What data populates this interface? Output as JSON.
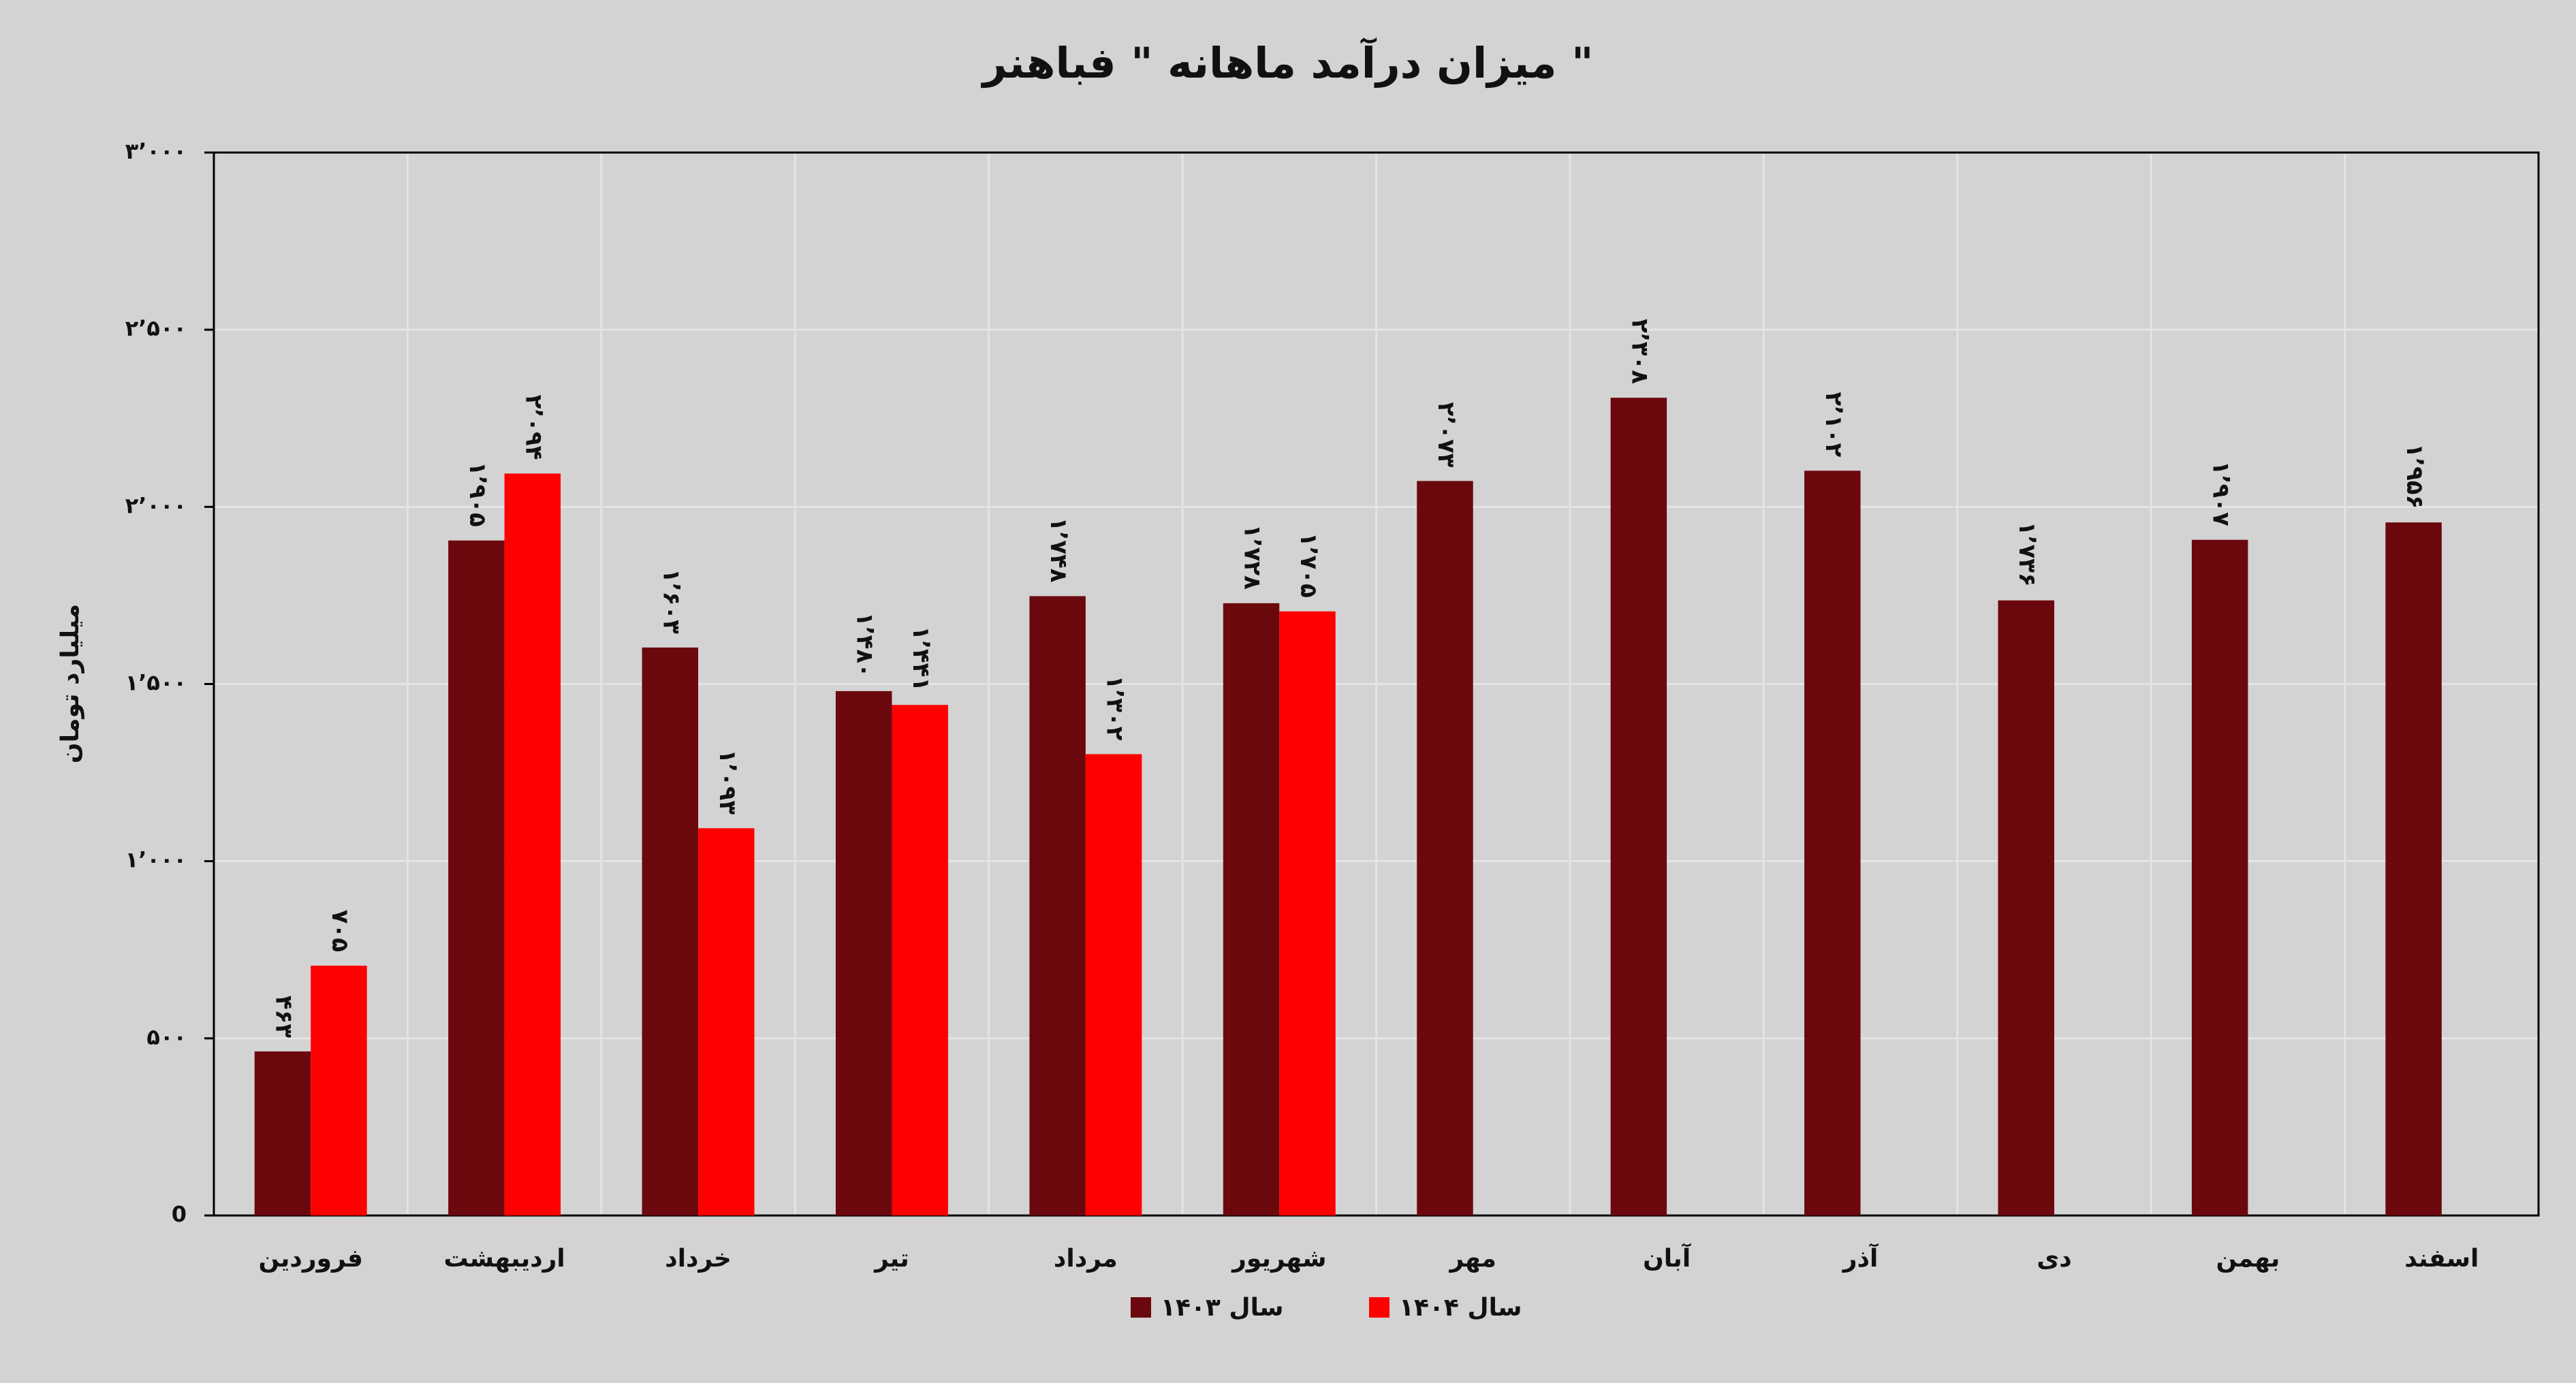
{
  "chart_data": {
    "type": "bar",
    "title": "میزان درآمد ماهانه \" فباهنر \"",
    "y_label": "میلیارد تومان",
    "categories": [
      "فروردین",
      "اردیبهشت",
      "خرداد",
      "تیر",
      "مرداد",
      "شهریور",
      "مهر",
      "آبان",
      "آذر",
      "دی",
      "بهمن",
      "اسفند"
    ],
    "series": [
      {
        "name": "سال ۱۴۰۳",
        "color": "#6b080e",
        "values": [
          463,
          1905,
          1603,
          1480,
          1748,
          1728,
          2073,
          2308,
          2102,
          1736,
          1907,
          1956
        ],
        "value_labels": [
          "۴۶۳",
          "۱٬۹۰۵",
          "۱٬۶۰۳",
          "۱٬۴۸۰",
          "۱٬۷۴۸",
          "۱٬۷۲۸",
          "۲٬۰۷۳",
          "۲٬۳۰۸",
          "۲٬۱۰۲",
          "۱٬۷۳۶",
          "۱٬۹۰۷",
          "۱٬۹۵۶"
        ]
      },
      {
        "name": "سال ۱۴۰۴",
        "color": "#ff0000",
        "values": [
          705,
          2094,
          1093,
          1441,
          1302,
          1705,
          null,
          null,
          null,
          null,
          null,
          null
        ],
        "value_labels": [
          "۷۰۵",
          "۲٬۰۹۴",
          "۱٬۰۹۳",
          "۱٬۴۴۱",
          "۱٬۳۰۲",
          "۱٬۷۰۵",
          null,
          null,
          null,
          null,
          null,
          null
        ]
      }
    ],
    "ylim": [
      0,
      3000
    ],
    "yticks": [
      0,
      {
        "value": 500,
        "label": "۵۰۰"
      },
      {
        "value": 1000,
        "label": "۱٬۰۰۰"
      },
      {
        "value": 1500,
        "label": "۱٬۵۰۰"
      },
      {
        "value": 2000,
        "label": "۲٬۰۰۰"
      },
      {
        "value": 2500,
        "label": "۲٬۵۰۰"
      },
      {
        "value": 3000,
        "label": "۳٬۰۰۰"
      }
    ],
    "grid": true,
    "legend": "bottom"
  }
}
